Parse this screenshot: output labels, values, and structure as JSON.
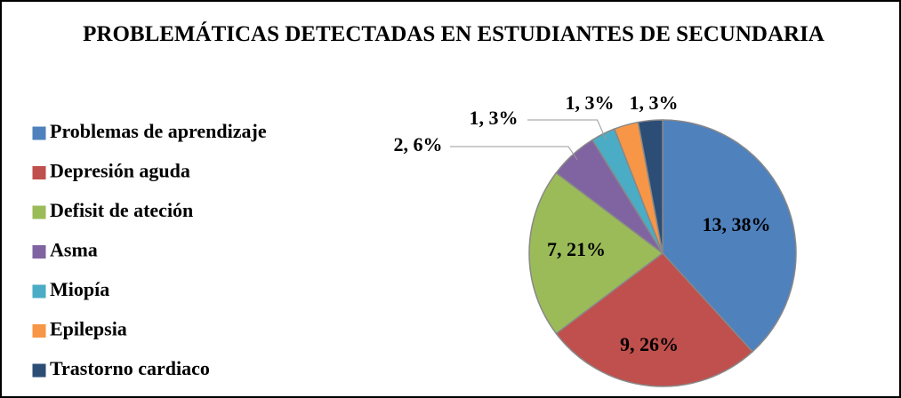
{
  "chart_data": {
    "type": "pie",
    "title": "PROBLEMÁTICAS DETECTADAS EN ESTUDIANTES DE SECUNDARIA",
    "categories": [
      "Problemas de aprendizaje",
      "Depresión aguda",
      "Defisit de ateción",
      "Asma",
      "Miopía",
      "Epilepsia",
      "Trastorno cardiaco"
    ],
    "values": [
      13,
      9,
      7,
      2,
      1,
      1,
      1
    ],
    "value_labels": [
      "13, 38%",
      "9, 26%",
      "7, 21%",
      "2, 6%",
      "1, 3%",
      "1, 3%",
      "1, 3%"
    ],
    "colors": [
      "#4f81bd",
      "#c0504d",
      "#9bbb59",
      "#8064a2",
      "#4bacc6",
      "#f79646",
      "#2c4d75"
    ],
    "legend": "left"
  }
}
